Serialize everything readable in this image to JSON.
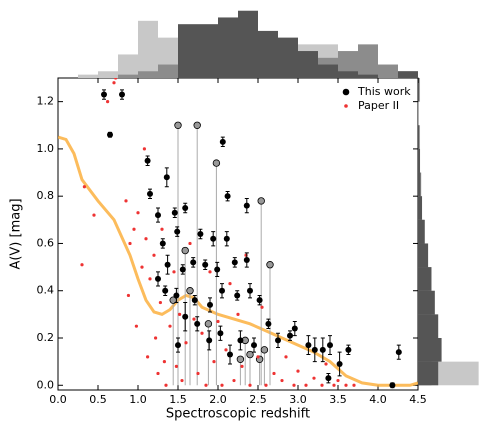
{
  "chart_data": [
    {
      "type": "scatter",
      "xlabel": "Spectroscopic redshift",
      "ylabel": "A(V)  [mag]",
      "xlim": [
        0,
        4.5
      ],
      "ylim": [
        -0.02,
        1.3
      ],
      "xticks": [
        {
          "value": 0,
          "label": "0.0"
        },
        {
          "value": 0.5,
          "label": "0.5"
        },
        {
          "value": 1,
          "label": "1.0"
        },
        {
          "value": 1.5,
          "label": "1.5"
        },
        {
          "value": 2,
          "label": "2.0"
        },
        {
          "value": 2.5,
          "label": "2.5"
        },
        {
          "value": 3,
          "label": "3.0"
        },
        {
          "value": 3.5,
          "label": "3.5"
        },
        {
          "value": 4,
          "label": "4.0"
        },
        {
          "value": 4.5,
          "label": "4.5"
        }
      ],
      "yticks": [
        {
          "value": 0,
          "label": "0.0"
        },
        {
          "value": 0.2,
          "label": "0.2"
        },
        {
          "value": 0.4,
          "label": "0.4"
        },
        {
          "value": 0.6,
          "label": "0.6"
        },
        {
          "value": 0.8,
          "label": "0.8"
        },
        {
          "value": 1,
          "label": "1.0"
        },
        {
          "value": 1.2,
          "label": "1.2"
        }
      ],
      "legend": "upper right",
      "series": [
        {
          "style": "line",
          "color": "#fbb040",
          "x": [
            0,
            0.1,
            0.2,
            0.3,
            0.5,
            0.7,
            0.9,
            1.0,
            1.1,
            1.2,
            1.3,
            1.4,
            1.5,
            1.6,
            1.7,
            1.8,
            2.0,
            2.2,
            2.4,
            2.6,
            2.8,
            3.0,
            3.2,
            3.4,
            3.6,
            3.8,
            4.0,
            4.2,
            4.4,
            4.5
          ],
          "values": [
            1.05,
            1.04,
            0.98,
            0.87,
            0.78,
            0.7,
            0.55,
            0.45,
            0.36,
            0.31,
            0.3,
            0.32,
            0.36,
            0.38,
            0.37,
            0.33,
            0.3,
            0.28,
            0.26,
            0.23,
            0.2,
            0.17,
            0.14,
            0.1,
            0.04,
            0.01,
            0,
            0,
            0,
            0.01
          ]
        },
        {
          "style": "stem",
          "color": "#999999",
          "x": [
            1.5,
            1.74,
            1.98,
            2.54,
            1.59,
            1.44,
            1.65,
            1.88,
            2.34,
            2.4,
            2.58,
            2.52,
            2.28,
            2.65
          ],
          "values": [
            1.1,
            1.1,
            0.94,
            0.78,
            0.57,
            0.36,
            0.4,
            0.26,
            0.19,
            0.13,
            0.15,
            0.11,
            0.11,
            0.51
          ]
        },
        {
          "name": "Paper II",
          "style": "dot",
          "color": "#ee3333",
          "x": [
            0.33,
            0.3,
            0.45,
            0.72,
            0.62,
            0.9,
            0.85,
            0.95,
            0.88,
            1.0,
            0.98,
            1.05,
            1.1,
            1.15,
            1.12,
            1.2,
            1.22,
            1.25,
            1.28,
            1.3,
            1.33,
            1.35,
            1.4,
            1.45,
            1.48,
            1.52,
            1.55,
            1.6,
            1.65,
            1.7,
            1.75,
            1.8,
            1.85,
            1.9,
            1.95,
            2.0,
            2.05,
            2.1,
            2.15,
            2.2,
            2.25,
            2.3,
            2.35,
            2.4,
            2.5,
            2.55,
            2.6,
            2.7,
            2.8,
            2.85,
            2.95,
            3.0,
            3.1,
            3.2,
            3.3,
            3.35,
            3.45,
            3.5,
            3.6,
            3.7,
            1.08,
            0.7
          ],
          "values": [
            0.84,
            0.51,
            0.72,
            1.3,
            1.2,
            0.6,
            0.78,
            0.66,
            0.38,
            0.73,
            0.25,
            0.5,
            0.62,
            0.45,
            0.12,
            0.55,
            0.2,
            0.05,
            0.35,
            0.66,
            0.1,
            0,
            0.25,
            0.48,
            0.08,
            0.3,
            0.02,
            0.18,
            0.6,
            0.28,
            0.05,
            0.22,
            0,
            0.48,
            0.1,
            0.27,
            0,
            0.15,
            0.43,
            0.02,
            0.3,
            0.08,
            0.55,
            0,
            0.12,
            0.33,
            0,
            0.05,
            0.02,
            0.12,
            0,
            0.06,
            0,
            0.03,
            0,
            0.09,
            0,
            0.02,
            0,
            0,
            1.0,
            1.28
          ]
        },
        {
          "name": "This work",
          "style": "errorbar",
          "color": "#000000",
          "x": [
            0.575,
            0.8,
            0.65,
            1.12,
            1.36,
            1.25,
            2.06,
            1.15,
            1.46,
            1.59,
            1.49,
            1.78,
            1.94,
            2.11,
            1.31,
            1.37,
            1.56,
            1.69,
            1.84,
            1.99,
            2.21,
            2.36,
            1.25,
            1.34,
            1.48,
            1.71,
            1.9,
            2.05,
            2.24,
            2.4,
            2.52,
            1.59,
            1.74,
            1.89,
            2.03,
            1.5,
            2.15,
            2.28,
            2.45,
            2.63,
            2.75,
            2.9,
            2.96,
            3.13,
            3.21,
            3.31,
            3.4,
            3.52,
            3.63,
            3.38,
            4.26,
            4.18,
            2.36,
            2.12
          ],
          "values": [
            1.23,
            1.23,
            1.06,
            0.95,
            0.88,
            0.72,
            1.03,
            0.81,
            0.73,
            0.75,
            0.65,
            0.64,
            0.62,
            0.62,
            0.6,
            0.51,
            0.49,
            0.52,
            0.51,
            0.49,
            0.52,
            0.53,
            0.45,
            0.4,
            0.38,
            0.36,
            0.34,
            0.4,
            0.38,
            0.4,
            0.36,
            0.29,
            0.26,
            0.19,
            0.22,
            0.17,
            0.13,
            0.19,
            0.17,
            0.26,
            0.19,
            0.21,
            0.24,
            0.17,
            0.15,
            0.15,
            0.17,
            0.09,
            0.15,
            0.03,
            0.14,
            0,
            0.76,
            0.8
          ],
          "errors": [
            0.02,
            0.02,
            0.01,
            0.02,
            0.04,
            0.03,
            0.02,
            0.02,
            0.02,
            0.02,
            0.02,
            0.02,
            0.03,
            0.03,
            0.02,
            0.04,
            0.02,
            0.02,
            0.02,
            0.03,
            0.02,
            0.03,
            0.03,
            0.02,
            0.03,
            0.02,
            0.03,
            0.03,
            0.02,
            0.03,
            0.02,
            0.06,
            0.03,
            0.04,
            0.03,
            0.03,
            0.04,
            0.04,
            0.03,
            0.02,
            0.03,
            0.02,
            0.03,
            0.04,
            0.05,
            0.05,
            0.04,
            0.05,
            0.02,
            0.02,
            0.03,
            0.01,
            0.03,
            0.02
          ]
        }
      ]
    },
    {
      "type": "histogram",
      "orientation": "vertical",
      "count_lim": [
        0,
        11
      ],
      "bins": [
        0,
        0.25,
        0.5,
        0.75,
        1,
        1.25,
        1.5,
        1.75,
        2,
        2.25,
        2.5,
        2.75,
        3,
        3.25,
        3.5,
        3.75,
        4,
        4.25,
        4.5
      ],
      "series": [
        {
          "color": "#c8c8c8",
          "values": [
            0,
            0.5,
            1,
            3.5,
            8.5,
            6,
            5,
            6,
            5,
            4,
            5,
            6,
            5,
            5,
            4,
            3,
            2,
            1
          ]
        },
        {
          "color": "#8c8c8c",
          "values": [
            0,
            0,
            0,
            0.5,
            1,
            2,
            3,
            4,
            6,
            7,
            6,
            5,
            4,
            3,
            4,
            5,
            2,
            1
          ]
        },
        {
          "color": "#555555",
          "values": [
            0,
            0,
            0,
            0,
            0,
            0,
            8,
            8,
            9,
            10,
            7,
            6,
            4,
            2,
            1,
            0.5,
            0,
            1
          ]
        }
      ]
    },
    {
      "type": "histogram",
      "orientation": "horizontal",
      "count_lim": [
        0,
        9.5
      ],
      "bins": [
        0,
        0.1,
        0.2,
        0.3,
        0.4,
        0.5,
        0.6,
        0.7,
        0.8,
        0.9,
        1.0,
        1.1,
        1.2,
        1.3
      ],
      "series": [
        {
          "color": "#c8c8c8",
          "values": [
            9,
            3,
            2,
            2,
            1.5,
            1,
            1,
            0.5,
            0.5,
            0.3,
            0.3,
            0,
            0.3
          ]
        },
        {
          "color": "#8c8c8c",
          "values": [
            2,
            3,
            2.5,
            2,
            1.5,
            1,
            0.8,
            0.5,
            0.3,
            0.2,
            0.2,
            0.1,
            0.1
          ]
        },
        {
          "color": "#555555",
          "values": [
            3,
            3.5,
            3,
            2.5,
            2,
            1.5,
            1,
            0.6,
            0.4,
            0.3,
            0.2,
            0,
            0.2
          ]
        }
      ]
    }
  ]
}
